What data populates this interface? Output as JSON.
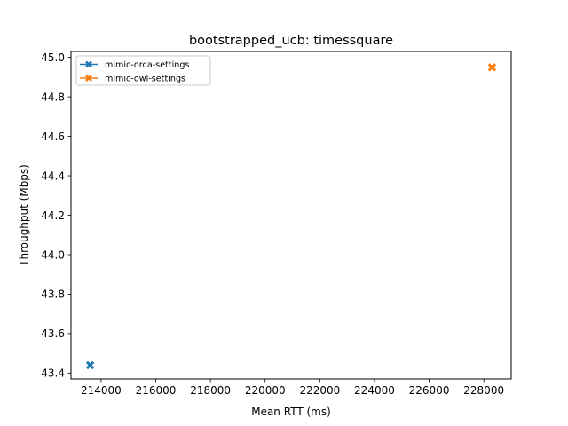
{
  "chart_data": {
    "type": "scatter",
    "title": "bootstrapped_ucb: timessquare",
    "xlabel": "Mean RTT (ms)",
    "ylabel": "Throughput (Mbps)",
    "xlim": [
      212900,
      229000
    ],
    "ylim": [
      43.37,
      45.03
    ],
    "xticks": [
      214000,
      216000,
      218000,
      220000,
      222000,
      224000,
      226000,
      228000
    ],
    "yticks": [
      43.4,
      43.6,
      43.8,
      44.0,
      44.2,
      44.4,
      44.6,
      44.8,
      45.0
    ],
    "xtick_labels": [
      "214000",
      "216000",
      "218000",
      "220000",
      "222000",
      "224000",
      "226000",
      "228000"
    ],
    "ytick_labels": [
      "43.4",
      "43.6",
      "43.8",
      "44.0",
      "44.2",
      "44.4",
      "44.6",
      "44.8",
      "45.0"
    ],
    "grid": false,
    "legend_position": "top-left",
    "marker": "X",
    "series": [
      {
        "name": "mimic-orca-settings",
        "color": "#1f77b4",
        "x": [
          213600
        ],
        "y": [
          43.44
        ]
      },
      {
        "name": "mimic-owl-settings",
        "color": "#ff7f0e",
        "x": [
          228300
        ],
        "y": [
          44.95
        ]
      }
    ]
  }
}
